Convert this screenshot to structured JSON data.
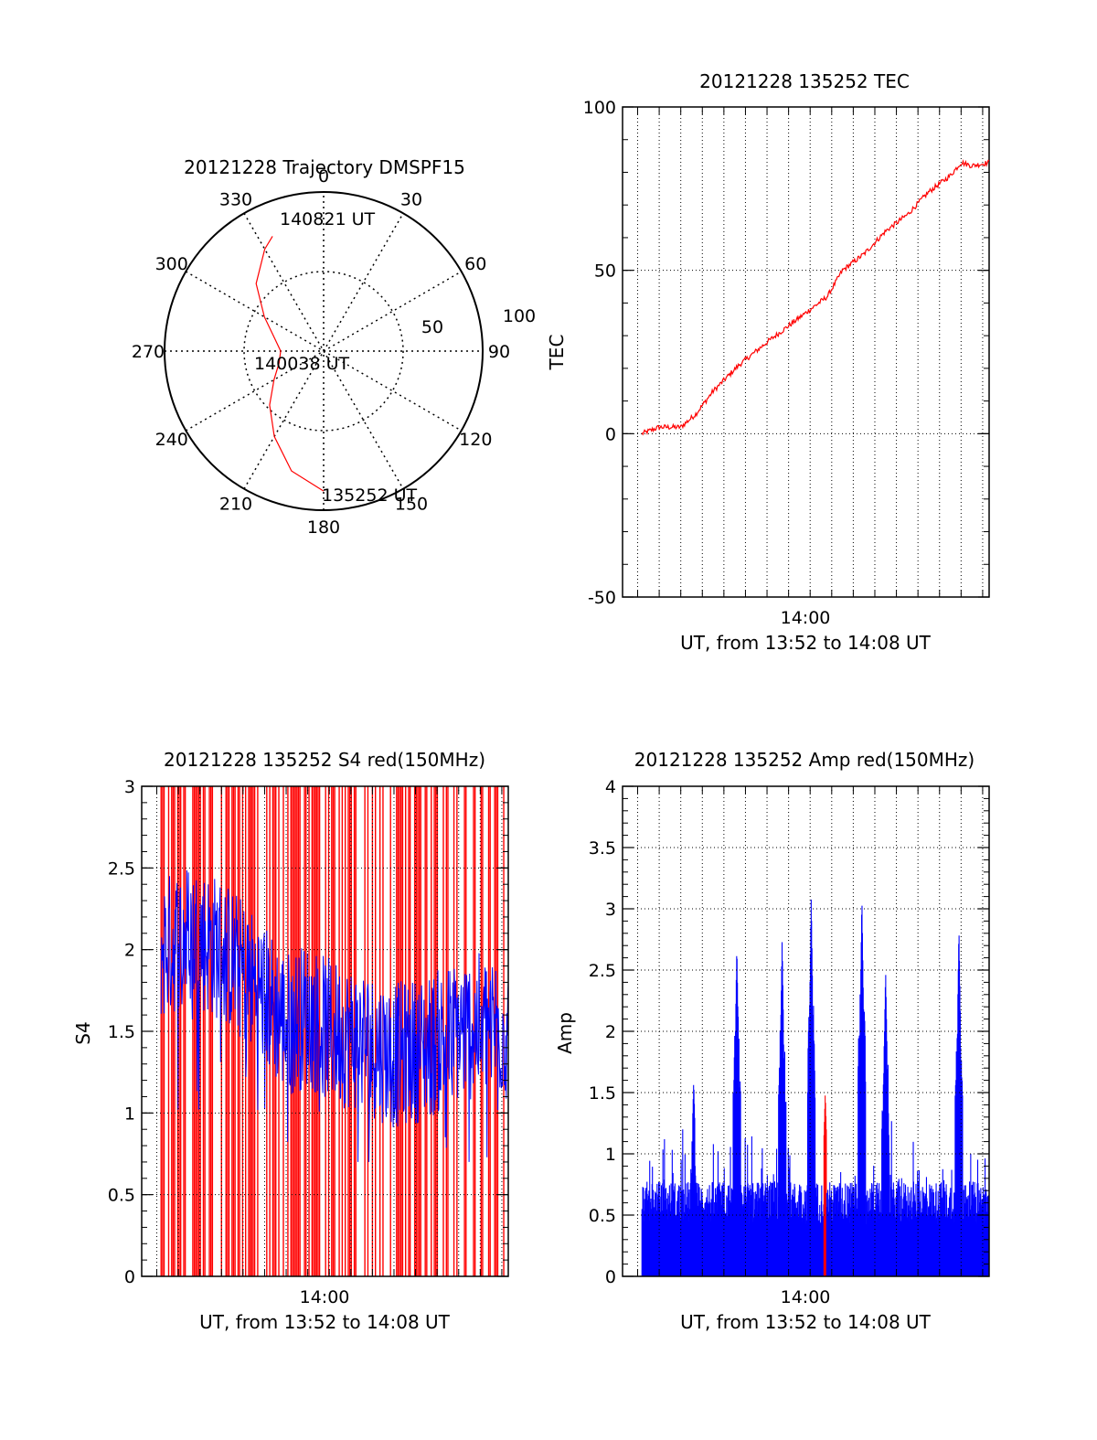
{
  "colors": {
    "red": "#ff0000",
    "blue": "#0000ff",
    "axis": "#000000"
  },
  "chart_data": [
    {
      "type": "polar-trajectory",
      "title": "20121228 Trajectory DMSPF15",
      "angle_labels": [
        "0",
        "30",
        "60",
        "90",
        "120",
        "150",
        "180",
        "210",
        "240",
        "270",
        "300",
        "330"
      ],
      "radius_labels": [
        "50",
        "100"
      ],
      "trajectory": {
        "start_time": "135252 UT",
        "mid_time": "140038 UT",
        "end_time": "140821 UT",
        "points": [
          [
            180,
            88
          ],
          [
            195,
            78
          ],
          [
            210,
            62
          ],
          [
            225,
            48
          ],
          [
            240,
            36
          ],
          [
            255,
            29
          ],
          [
            270,
            27
          ],
          [
            285,
            32
          ],
          [
            300,
            43
          ],
          [
            315,
            60
          ],
          [
            330,
            74
          ],
          [
            336,
            79
          ]
        ]
      }
    },
    {
      "type": "line",
      "title": "20121228 135252 TEC",
      "ylabel": "TEC",
      "xtick": "14:00",
      "xlabel": "UT, from 13:52 to 14:08 UT",
      "ylim": [
        -50,
        100
      ],
      "yticks": [
        "-50",
        "0",
        "50",
        "100"
      ],
      "xlim_minutes": [
        -8.7,
        8.3
      ],
      "series": [
        {
          "color": "red",
          "x": [
            -7.8,
            -7.0,
            -6.0,
            -5.3,
            -4.5,
            -3.3,
            -2.0,
            -1.0,
            0.0,
            0.8,
            1.5,
            2.5,
            3.5,
            4.5,
            5.5,
            6.5,
            7.0,
            7.5,
            8.3
          ],
          "y": [
            0,
            2,
            2,
            6,
            13,
            21,
            28,
            33,
            38,
            42,
            50,
            55,
            62,
            67,
            74,
            79,
            83,
            82,
            83
          ]
        }
      ]
    },
    {
      "type": "line",
      "title": "20121228 135252 S4 red(150MHz)",
      "ylabel": "S4",
      "xtick": "14:00",
      "xlabel": "UT, from 13:52 to 14:08 UT",
      "ylim": [
        0,
        3
      ],
      "yticks": [
        "0",
        "0.5",
        "1",
        "1.5",
        "2",
        "2.5",
        "3"
      ],
      "xlim_minutes": [
        -8.7,
        8.3
      ],
      "series": [
        {
          "color": "blue",
          "x": [
            -7.8,
            -6.5,
            -5.0,
            -3.5,
            -2.0,
            -1.0,
            0.0,
            1.5,
            3.0,
            4.5,
            6.0,
            7.5,
            8.3
          ],
          "y": [
            2.0,
            2.1,
            2.0,
            1.8,
            1.55,
            1.6,
            1.5,
            1.45,
            1.35,
            1.4,
            1.5,
            1.55,
            1.5
          ]
        }
      ]
    },
    {
      "type": "bar",
      "title": "20121228 135252 Amp red(150MHz)",
      "ylabel": "Amp",
      "xtick": "14:00",
      "xlabel": "UT, from 13:52 to 14:08 UT",
      "ylim": [
        0,
        4
      ],
      "yticks": [
        "0",
        "0.5",
        "1",
        "1.5",
        "2",
        "2.5",
        "3",
        "3.5",
        "4"
      ],
      "xlim_minutes": [
        -8.7,
        8.3
      ],
      "baseline_level": 0.6,
      "peaks": [
        {
          "x": -3.4,
          "y": 2.7,
          "color": "blue"
        },
        {
          "x": -1.3,
          "y": 2.75,
          "color": "blue"
        },
        {
          "x": 0.05,
          "y": 3.1,
          "color": "blue"
        },
        {
          "x": 0.7,
          "y": 1.5,
          "color": "red"
        },
        {
          "x": 2.4,
          "y": 3.1,
          "color": "blue"
        },
        {
          "x": 3.5,
          "y": 2.5,
          "color": "blue"
        },
        {
          "x": 6.9,
          "y": 2.85,
          "color": "blue"
        },
        {
          "x": -5.4,
          "y": 1.6,
          "color": "blue"
        }
      ]
    }
  ]
}
